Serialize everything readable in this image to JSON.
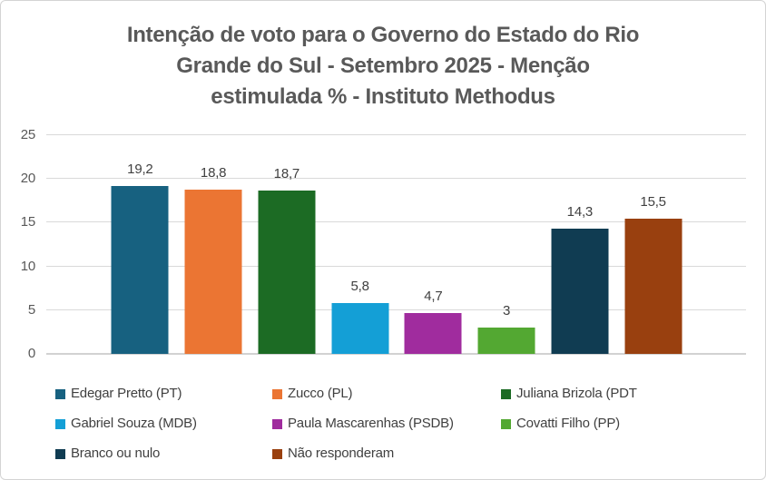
{
  "window": {
    "background": "#FFFFFF",
    "border_color": "#D4D4D4"
  },
  "chart_data": {
    "type": "bar",
    "title": "Intenção de voto para o Governo do Estado do Rio Grande do Sul - Setembro 2025 - Menção estimulada %  - Instituto Methodus",
    "title_lines": [
      "Intenção de voto para o Governo do Estado do Rio",
      "Grande do Sul - Setembro 2025 - Menção",
      "estimulada %  - Instituto Methodus"
    ],
    "categories": [
      "Edegar Pretto (PT)",
      "Zucco (PL)",
      "Juliana Brizola (PDT",
      "Gabriel Souza (MDB)",
      "Paula Mascarenhas (PSDB)",
      "Covatti Filho (PP)",
      "Branco ou nulo",
      "Não responderam"
    ],
    "values": [
      19.2,
      18.8,
      18.7,
      5.8,
      4.7,
      3,
      14.3,
      15.5
    ],
    "value_labels": [
      "19,2",
      "18,8",
      "18,7",
      "5,8",
      "4,7",
      "3",
      "14,3",
      "15,5"
    ],
    "colors": [
      "#176180",
      "#EB7533",
      "#1C6B24",
      "#149FD6",
      "#A02C9E",
      "#53A832",
      "#103C52",
      "#99400F"
    ],
    "xlabel": "",
    "ylabel": "",
    "y_axis": {
      "min": 0,
      "max": 25,
      "tick_step": 5,
      "ticks": [
        "0",
        "5",
        "10",
        "15",
        "20",
        "25"
      ],
      "grid": true,
      "gridline_color": "#D9D9D9"
    },
    "legend": {
      "position": "bottom",
      "columns": 3
    },
    "text_colors": {
      "title": "#595959",
      "axis_labels": "#595959",
      "data_labels": "#404040",
      "legend_labels": "#404040"
    }
  }
}
